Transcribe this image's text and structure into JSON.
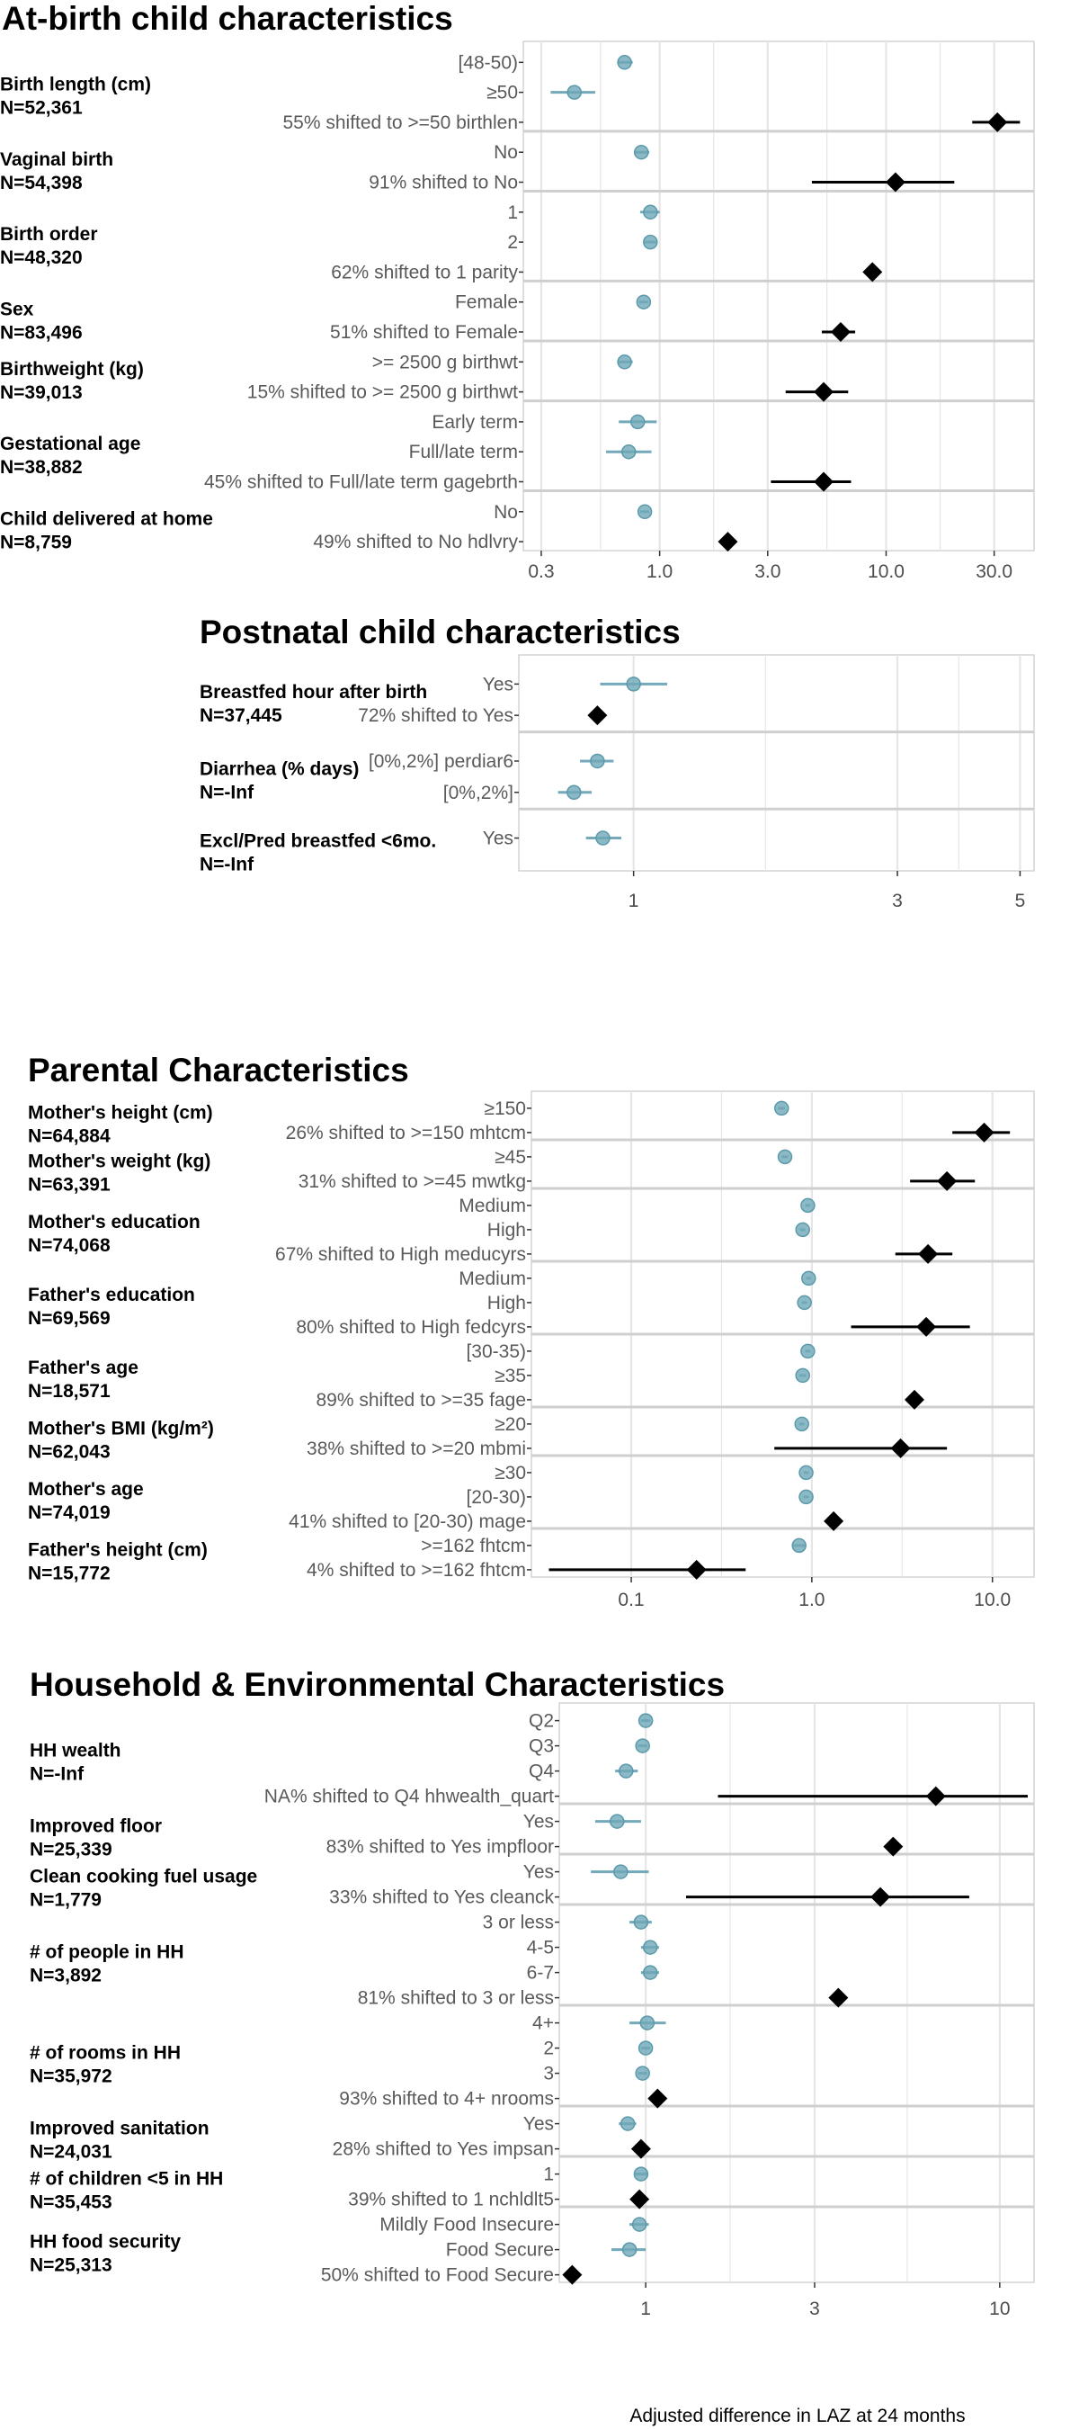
{
  "chart_data": [
    {
      "type": "forest",
      "title": "At-birth child characteristics",
      "x_scale": "log",
      "xlim": [
        0.25,
        45
      ],
      "x_ticks": [
        0.3,
        1.0,
        3.0,
        10.0,
        30.0
      ],
      "x_tick_labels": [
        "0.3",
        "1.0",
        "3.0",
        "10.0",
        "30.0"
      ],
      "groups": [
        {
          "name": "Birth length (cm)",
          "n": "N=52,361",
          "rows": [
            {
              "label": "[48-50)",
              "kind": "level",
              "est": 0.7,
              "lo": 0.65,
              "hi": 0.76
            },
            {
              "label": "≥50",
              "kind": "level",
              "est": 0.42,
              "lo": 0.33,
              "hi": 0.52
            },
            {
              "label": "55% shifted to >=50 birthlen",
              "kind": "shift",
              "est": 31,
              "lo": 24,
              "hi": 39
            }
          ]
        },
        {
          "name": "Vaginal birth",
          "n": "N=54,398",
          "rows": [
            {
              "label": "No",
              "kind": "level",
              "est": 0.83,
              "lo": 0.77,
              "hi": 0.9
            },
            {
              "label": "91% shifted to No",
              "kind": "shift",
              "est": 11,
              "lo": 4.7,
              "hi": 20
            }
          ]
        },
        {
          "name": "Birth order",
          "n": "N=48,320",
          "rows": [
            {
              "label": "1",
              "kind": "level",
              "est": 0.91,
              "lo": 0.82,
              "hi": 1.0
            },
            {
              "label": "2",
              "kind": "level",
              "est": 0.91,
              "lo": 0.85,
              "hi": 0.97
            },
            {
              "label": "62% shifted to 1 parity",
              "kind": "shift",
              "est": 8.7,
              "lo": 8.3,
              "hi": 9.1
            }
          ]
        },
        {
          "name": "Sex",
          "n": "N=83,496",
          "rows": [
            {
              "label": "Female",
              "kind": "level",
              "est": 0.85,
              "lo": 0.81,
              "hi": 0.89
            },
            {
              "label": "51% shifted to Female",
              "kind": "shift",
              "est": 6.3,
              "lo": 5.2,
              "hi": 7.3
            }
          ]
        },
        {
          "name": "Birthweight (kg)",
          "n": "N=39,013",
          "rows": [
            {
              "label": ">= 2500 g birthwt",
              "kind": "level",
              "est": 0.7,
              "lo": 0.65,
              "hi": 0.76
            },
            {
              "label": "15% shifted to >= 2500 g birthwt",
              "kind": "shift",
              "est": 5.3,
              "lo": 3.6,
              "hi": 6.8
            }
          ]
        },
        {
          "name": "Gestational age",
          "n": "N=38,882",
          "rows": [
            {
              "label": "Early term",
              "kind": "level",
              "est": 0.8,
              "lo": 0.66,
              "hi": 0.97
            },
            {
              "label": "Full/late term",
              "kind": "level",
              "est": 0.73,
              "lo": 0.58,
              "hi": 0.92
            },
            {
              "label": "45% shifted to Full/late term gagebrth",
              "kind": "shift",
              "est": 5.3,
              "lo": 3.1,
              "hi": 7.0
            }
          ]
        },
        {
          "name": "Child delivered at home",
          "n": "N=8,759",
          "rows": [
            {
              "label": "No",
              "kind": "level",
              "est": 0.86,
              "lo": 0.82,
              "hi": 0.9
            },
            {
              "label": "49% shifted to No hdlvry",
              "kind": "shift",
              "est": 2.0,
              "lo": 1.9,
              "hi": 2.1
            }
          ]
        }
      ]
    },
    {
      "type": "forest",
      "title": "Postnatal child characteristics",
      "x_scale": "log",
      "xlim": [
        0.62,
        5.3
      ],
      "x_ticks": [
        1,
        3,
        5
      ],
      "x_tick_labels": [
        "1",
        "3",
        "5"
      ],
      "groups": [
        {
          "name": "Breastfed hour after birth",
          "n": "N=37,445",
          "rows": [
            {
              "label": "Yes",
              "kind": "level",
              "est": 1.0,
              "lo": 0.87,
              "hi": 1.15
            },
            {
              "label": "72% shifted to Yes",
              "kind": "shift",
              "est": 0.86,
              "lo": 0.84,
              "hi": 0.88
            }
          ]
        },
        {
          "name": "Diarrhea (% days)",
          "n": "N=-Inf",
          "rows": [
            {
              "label": "[0%,2%] perdiar6",
              "kind": "level",
              "est": 0.86,
              "lo": 0.8,
              "hi": 0.92
            },
            {
              "label": "[0%,2%]",
              "kind": "level",
              "est": 0.78,
              "lo": 0.73,
              "hi": 0.84
            }
          ]
        },
        {
          "name": "Excl/Pred breastfed <6mo.",
          "n": "N=-Inf",
          "rows": [
            {
              "label": "Yes",
              "kind": "level",
              "est": 0.88,
              "lo": 0.82,
              "hi": 0.95
            }
          ]
        }
      ]
    },
    {
      "type": "forest",
      "title": "Parental Characteristics",
      "x_scale": "log",
      "xlim": [
        0.028,
        17
      ],
      "x_ticks": [
        0.1,
        1.0,
        10.0
      ],
      "x_tick_labels": [
        "0.1",
        "1.0",
        "10.0"
      ],
      "groups": [
        {
          "name": "Mother's  height (cm)",
          "n": "N=64,884",
          "rows": [
            {
              "label": "≥150",
              "kind": "level",
              "est": 0.68,
              "lo": 0.65,
              "hi": 0.71
            },
            {
              "label": "26% shifted to >=150 mhtcm",
              "kind": "shift",
              "est": 9.0,
              "lo": 6.0,
              "hi": 12.5
            }
          ]
        },
        {
          "name": "Mother's  weight (kg)",
          "n": "N=63,391",
          "rows": [
            {
              "label": "≥45",
              "kind": "level",
              "est": 0.71,
              "lo": 0.68,
              "hi": 0.74
            },
            {
              "label": "31% shifted to >=45 mwtkg",
              "kind": "shift",
              "est": 5.6,
              "lo": 3.5,
              "hi": 8.0
            }
          ]
        },
        {
          "name": "Mother's education",
          "n": "N=74,068",
          "rows": [
            {
              "label": "Medium",
              "kind": "level",
              "est": 0.95,
              "lo": 0.92,
              "hi": 0.98
            },
            {
              "label": "High",
              "kind": "level",
              "est": 0.89,
              "lo": 0.86,
              "hi": 0.92
            },
            {
              "label": "67% shifted to High meducyrs",
              "kind": "shift",
              "est": 4.4,
              "lo": 2.9,
              "hi": 6.0
            }
          ]
        },
        {
          "name": "Father's education",
          "n": "N=69,569",
          "rows": [
            {
              "label": "Medium",
              "kind": "level",
              "est": 0.96,
              "lo": 0.93,
              "hi": 0.99
            },
            {
              "label": "High",
              "kind": "level",
              "est": 0.91,
              "lo": 0.88,
              "hi": 0.94
            },
            {
              "label": "80% shifted to High fedcyrs",
              "kind": "shift",
              "est": 4.3,
              "lo": 1.65,
              "hi": 7.5
            }
          ]
        },
        {
          "name": "Father's age",
          "n": "N=18,571",
          "rows": [
            {
              "label": "[30-35)",
              "kind": "level",
              "est": 0.95,
              "lo": 0.92,
              "hi": 0.98
            },
            {
              "label": "≥35",
              "kind": "level",
              "est": 0.89,
              "lo": 0.85,
              "hi": 0.93
            },
            {
              "label": "89% shifted to >=35 fage",
              "kind": "shift",
              "est": 3.7,
              "lo": 3.6,
              "hi": 3.8
            }
          ]
        },
        {
          "name": "Mother's  BMI (kg/m²)",
          "n": "N=62,043",
          "rows": [
            {
              "label": "≥20",
              "kind": "level",
              "est": 0.88,
              "lo": 0.85,
              "hi": 0.91
            },
            {
              "label": "38% shifted to >=20 mbmi",
              "kind": "shift",
              "est": 3.1,
              "lo": 0.62,
              "hi": 5.6
            }
          ]
        },
        {
          "name": "Mother's age",
          "n": "N=74,019",
          "rows": [
            {
              "label": "≥30",
              "kind": "level",
              "est": 0.93,
              "lo": 0.9,
              "hi": 0.96
            },
            {
              "label": "[20-30)",
              "kind": "level",
              "est": 0.93,
              "lo": 0.9,
              "hi": 0.96
            },
            {
              "label": "41% shifted to [20-30) mage",
              "kind": "shift",
              "est": 1.32,
              "lo": 1.28,
              "hi": 1.36
            }
          ]
        },
        {
          "name": "Father's height (cm)",
          "n": "N=15,772",
          "rows": [
            {
              "label": ">=162 fhtcm",
              "kind": "level",
              "est": 0.85,
              "lo": 0.78,
              "hi": 0.93
            },
            {
              "label": "4% shifted to >=162 fhtcm",
              "kind": "shift",
              "est": 0.23,
              "lo": 0.035,
              "hi": 0.43
            }
          ]
        }
      ]
    },
    {
      "type": "forest",
      "title": "Household & Environmental Characteristics",
      "x_scale": "log",
      "xlim": [
        0.57,
        12.5
      ],
      "x_ticks": [
        1,
        3,
        10
      ],
      "x_tick_labels": [
        "1",
        "3",
        "10"
      ],
      "xlabel": "Adjusted difference in LAZ at 24 months",
      "groups": [
        {
          "name": "HH wealth",
          "n": "N=-Inf",
          "rows": [
            {
              "label": "Q2",
              "kind": "level",
              "est": 1.0,
              "lo": 0.97,
              "hi": 1.03
            },
            {
              "label": "Q3",
              "kind": "level",
              "est": 0.98,
              "lo": 0.95,
              "hi": 1.01
            },
            {
              "label": "Q4",
              "kind": "level",
              "est": 0.88,
              "lo": 0.82,
              "hi": 0.95
            },
            {
              "label": "NA% shifted to Q4 hhwealth_quart",
              "kind": "shift",
              "est": 6.6,
              "lo": 1.6,
              "hi": 12.0
            }
          ]
        },
        {
          "name": "Improved floor",
          "n": "N=25,339",
          "rows": [
            {
              "label": "Yes",
              "kind": "level",
              "est": 0.83,
              "lo": 0.72,
              "hi": 0.97
            },
            {
              "label": "83% shifted to Yes impfloor",
              "kind": "shift",
              "est": 5.0,
              "lo": 4.8,
              "hi": 5.2
            }
          ]
        },
        {
          "name": "Clean cooking fuel usage",
          "n": "N=1,779",
          "rows": [
            {
              "label": "Yes",
              "kind": "level",
              "est": 0.85,
              "lo": 0.7,
              "hi": 1.02
            },
            {
              "label": "33% shifted to Yes cleanck",
              "kind": "shift",
              "est": 4.6,
              "lo": 1.3,
              "hi": 8.2
            }
          ]
        },
        {
          "name": "# of people in HH",
          "n": "N=3,892",
          "rows": [
            {
              "label": "3 or less",
              "kind": "level",
              "est": 0.97,
              "lo": 0.9,
              "hi": 1.04
            },
            {
              "label": "4-5",
              "kind": "level",
              "est": 1.03,
              "lo": 0.97,
              "hi": 1.09
            },
            {
              "label": "6-7",
              "kind": "level",
              "est": 1.03,
              "lo": 0.97,
              "hi": 1.09
            },
            {
              "label": "81% shifted to 3 or less",
              "kind": "shift",
              "est": 3.5,
              "lo": 3.4,
              "hi": 3.6
            }
          ]
        },
        {
          "name": "# of rooms in HH",
          "n": "N=35,972",
          "rows": [
            {
              "label": "4+",
              "kind": "level",
              "est": 1.01,
              "lo": 0.9,
              "hi": 1.14
            },
            {
              "label": "2",
              "kind": "level",
              "est": 1.0,
              "lo": 0.97,
              "hi": 1.03
            },
            {
              "label": "3",
              "kind": "level",
              "est": 0.98,
              "lo": 0.95,
              "hi": 1.01
            },
            {
              "label": "93% shifted to 4+ nrooms",
              "kind": "shift",
              "est": 1.08,
              "lo": 1.05,
              "hi": 1.11
            }
          ]
        },
        {
          "name": "Improved sanitation",
          "n": "N=24,031",
          "rows": [
            {
              "label": "Yes",
              "kind": "level",
              "est": 0.89,
              "lo": 0.84,
              "hi": 0.94
            },
            {
              "label": "28% shifted to Yes impsan",
              "kind": "shift",
              "est": 0.97,
              "lo": 0.94,
              "hi": 1.0
            }
          ]
        },
        {
          "name": "# of children <5 in HH",
          "n": "N=35,453",
          "rows": [
            {
              "label": "1",
              "kind": "level",
              "est": 0.97,
              "lo": 0.93,
              "hi": 1.01
            },
            {
              "label": "39% shifted to 1 nchldlt5",
              "kind": "shift",
              "est": 0.96,
              "lo": 0.93,
              "hi": 0.99
            }
          ]
        },
        {
          "name": "HH food security",
          "n": "N=25,313",
          "rows": [
            {
              "label": "Mildly Food Insecure",
              "kind": "level",
              "est": 0.96,
              "lo": 0.9,
              "hi": 1.02
            },
            {
              "label": "Food Secure",
              "kind": "level",
              "est": 0.9,
              "lo": 0.8,
              "hi": 1.0
            },
            {
              "label": "50% shifted to Food Secure",
              "kind": "shift",
              "est": 0.62,
              "lo": 0.6,
              "hi": 0.64
            }
          ]
        }
      ]
    }
  ],
  "colors": {
    "level_point": "#6fa8b8",
    "level_ci": "#5b9aab",
    "shift_point": "#000000",
    "grid": "#e6e6e6",
    "separator": "#cfcfcf",
    "panel_border": "#c9c9c9"
  }
}
